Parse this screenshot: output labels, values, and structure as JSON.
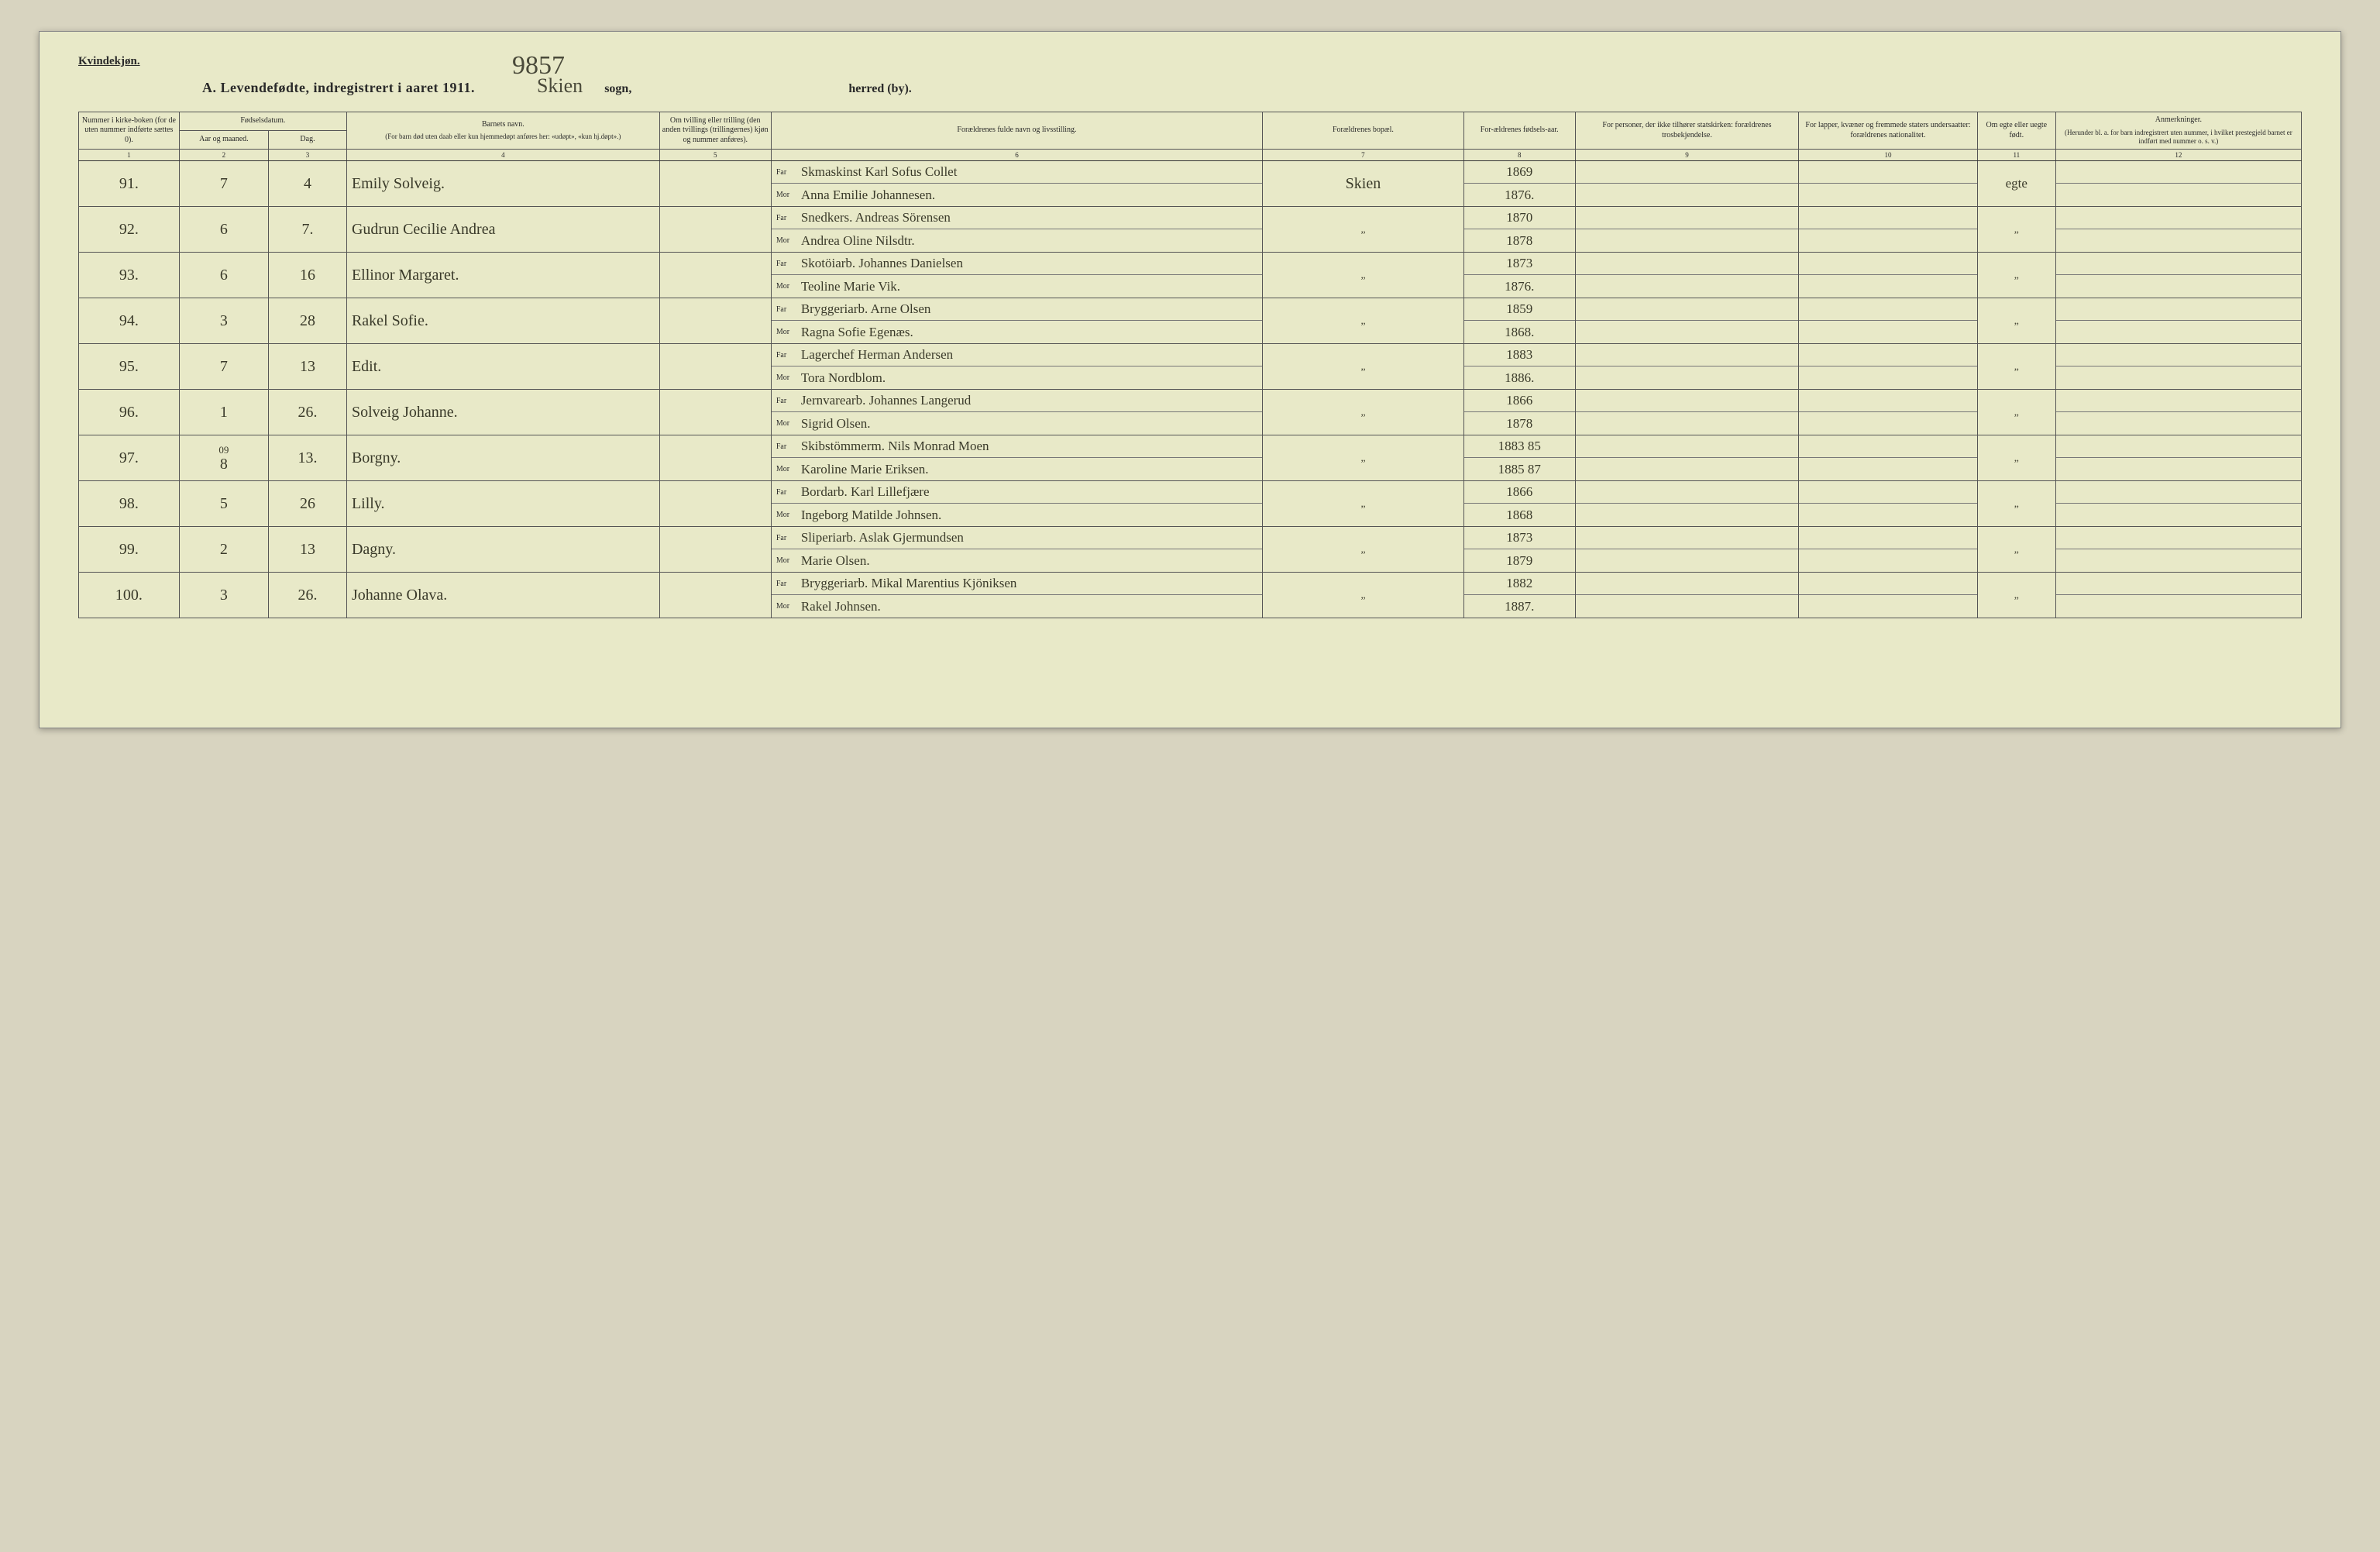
{
  "page": {
    "gender_label": "Kvindekjøn.",
    "title": "A. Levendefødte, indregistrert i aaret 1911.",
    "handwritten_number": "9857",
    "sogn_handwritten": "Skien",
    "sogn_print": "sogn,",
    "herred_print": "herred (by).",
    "background_color": "#e8e9c8",
    "ink_color": "#3a3a2a"
  },
  "headers": {
    "col1": "Nummer i kirke-boken (for de uten nummer indførte sættes 0).",
    "col2a": "Fødselsdatum.",
    "col2": "Aar og maaned.",
    "col3": "Dag.",
    "col4": "Barnets navn.",
    "col4sub": "(For barn død uten daab eller kun hjemmedøpt anføres her: «udøpt», «kun hj.døpt».)",
    "col5": "Om tvilling eller trilling (den anden tvillings (trillingernes) kjøn og nummer anføres).",
    "col6": "Forældrenes fulde navn og livsstilling.",
    "col7": "Forældrenes bopæl.",
    "col8": "For-ældrenes fødsels-aar.",
    "col9": "For personer, der ikke tilhører statskirken: forældrenes trosbekjendelse.",
    "col10": "For lapper, kvæner og fremmede staters undersaatter: forældrenes nationalitet.",
    "col11": "Om egte eller uegte født.",
    "col12": "Anmerkninger.",
    "col12sub": "(Herunder bl. a. for barn indregistrert uten nummer, i hvilket prestegjeld barnet er indført med nummer o. s. v.)",
    "far": "Far",
    "mor": "Mor"
  },
  "colnums": [
    "1",
    "2",
    "3",
    "4",
    "5",
    "6",
    "7",
    "8",
    "9",
    "10",
    "11",
    "12"
  ],
  "rows": [
    {
      "num": "91.",
      "month": "7",
      "day": "4",
      "child": "Emily Solveig.",
      "far": "Skmaskinst Karl Sofus Collet",
      "mor": "Anna Emilie Johannesen.",
      "bopel": "Skien",
      "year_far": "1869",
      "year_mor": "1876.",
      "egte": "egte"
    },
    {
      "num": "92.",
      "month": "6",
      "day": "7.",
      "child": "Gudrun Cecilie Andrea",
      "far": "Snedkers. Andreas Sörensen",
      "mor": "Andrea Oline Nilsdtr.",
      "bopel": "„",
      "year_far": "1870",
      "year_mor": "1878",
      "egte": "„"
    },
    {
      "num": "93.",
      "month": "6",
      "day": "16",
      "child": "Ellinor Margaret.",
      "far": "Skotöiarb. Johannes Danielsen",
      "mor": "Teoline Marie Vik.",
      "bopel": "„",
      "year_far": "1873",
      "year_mor": "1876.",
      "egte": "„"
    },
    {
      "num": "94.",
      "month": "3",
      "day": "28",
      "child": "Rakel Sofie.",
      "far": "Bryggeriarb. Arne Olsen",
      "mor": "Ragna Sofie Egenæs.",
      "bopel": "„",
      "year_far": "1859",
      "year_mor": "1868.",
      "egte": "„"
    },
    {
      "num": "95.",
      "month": "7",
      "day": "13",
      "child": "Edit.",
      "far": "Lagerchef Herman Andersen",
      "mor": "Tora Nordblom.",
      "bopel": "„",
      "year_far": "1883",
      "year_mor": "1886.",
      "egte": "„"
    },
    {
      "num": "96.",
      "month": "1",
      "day": "26.",
      "child": "Solveig Johanne.",
      "far": "Jernvarearb. Johannes Langerud",
      "mor": "Sigrid Olsen.",
      "bopel": "„",
      "year_far": "1866",
      "year_mor": "1878",
      "egte": "„"
    },
    {
      "num": "97.",
      "month": "09\n8",
      "day": "13.",
      "child": "Borgny.",
      "far": "Skibstömmerm. Nils Monrad Moen",
      "mor": "Karoline Marie Eriksen.",
      "bopel": "„",
      "year_far": "1883 85",
      "year_mor": "1885 87",
      "egte": "„"
    },
    {
      "num": "98.",
      "month": "5",
      "day": "26",
      "child": "Lilly.",
      "far": "Bordarb. Karl Lillefjære",
      "mor": "Ingeborg Matilde Johnsen.",
      "bopel": "„",
      "year_far": "1866",
      "year_mor": "1868",
      "egte": "„"
    },
    {
      "num": "99.",
      "month": "2",
      "day": "13",
      "child": "Dagny.",
      "far": "Sliperiarb. Aslak Gjermundsen",
      "mor": "Marie Olsen.",
      "bopel": "„",
      "year_far": "1873",
      "year_mor": "1879",
      "egte": "„"
    },
    {
      "num": "100.",
      "month": "3",
      "day": "26.",
      "child": "Johanne Olava.",
      "far": "Bryggeriarb. Mikal Marentius Kjöniksen",
      "mor": "Rakel Johnsen.",
      "bopel": "„",
      "year_far": "1882",
      "year_mor": "1887.",
      "egte": "„"
    }
  ]
}
